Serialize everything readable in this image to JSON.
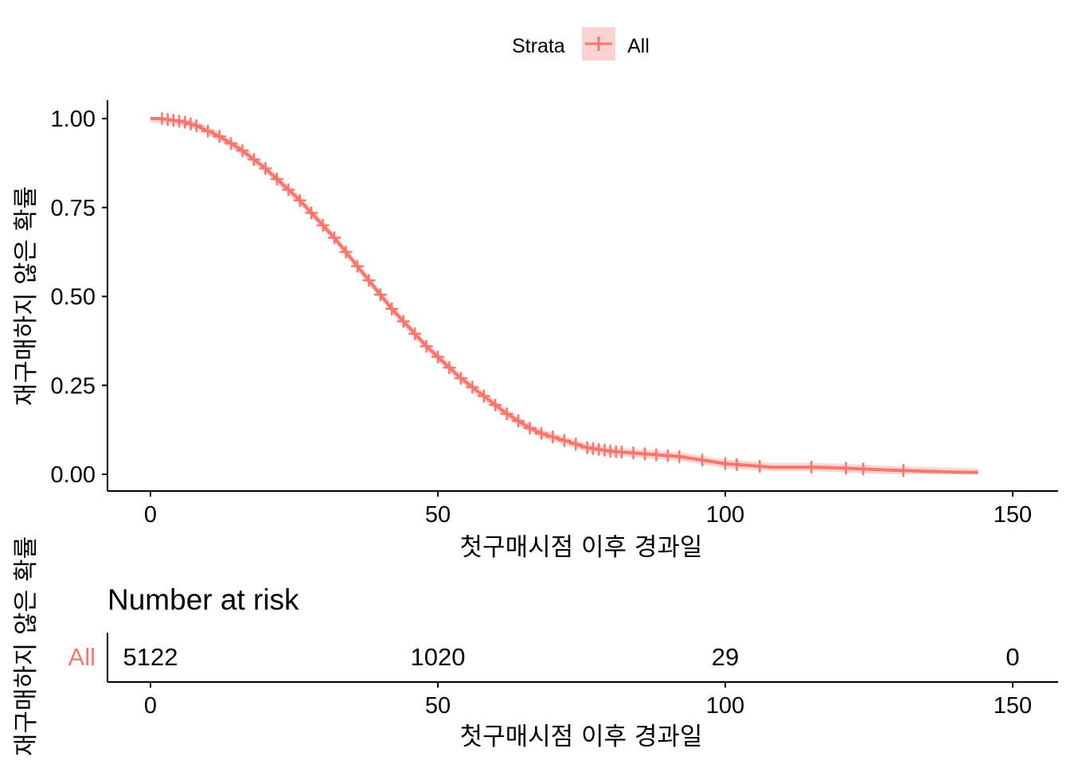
{
  "legend": {
    "title": "Strata",
    "label": "All"
  },
  "colors": {
    "series": "#F8766D",
    "band": "#F8766D"
  },
  "chart_data": [
    {
      "type": "line",
      "title": "",
      "xlabel": "첫구매시점 이후 경과일",
      "ylabel": "재구매하지 않은 확률",
      "xlim": [
        0,
        150
      ],
      "ylim": [
        0,
        1
      ],
      "x_ticks": [
        "0",
        "50",
        "100",
        "150"
      ],
      "y_ticks": [
        "0.00",
        "0.25",
        "0.50",
        "0.75",
        "1.00"
      ],
      "legend_position": "top",
      "grid": false,
      "series": [
        {
          "name": "All",
          "x": [
            0,
            2,
            4,
            6,
            8,
            10,
            12,
            14,
            16,
            18,
            20,
            22,
            24,
            26,
            28,
            30,
            32,
            34,
            36,
            38,
            40,
            42,
            44,
            46,
            48,
            50,
            52,
            54,
            56,
            58,
            60,
            62,
            64,
            66,
            68,
            70,
            72,
            74,
            76,
            78,
            80,
            84,
            88,
            92,
            96,
            100,
            104,
            108,
            112,
            116,
            120,
            124,
            128,
            132,
            136,
            140,
            144
          ],
          "y": [
            1.0,
            1.0,
            0.995,
            0.99,
            0.98,
            0.965,
            0.95,
            0.93,
            0.91,
            0.885,
            0.86,
            0.83,
            0.8,
            0.77,
            0.735,
            0.7,
            0.665,
            0.625,
            0.585,
            0.545,
            0.505,
            0.465,
            0.43,
            0.395,
            0.36,
            0.33,
            0.3,
            0.27,
            0.245,
            0.22,
            0.195,
            0.17,
            0.15,
            0.13,
            0.115,
            0.105,
            0.095,
            0.085,
            0.075,
            0.07,
            0.065,
            0.06,
            0.055,
            0.05,
            0.04,
            0.03,
            0.025,
            0.02,
            0.02,
            0.02,
            0.018,
            0.015,
            0.012,
            0.01,
            0.008,
            0.006,
            0.005
          ]
        }
      ],
      "censor_x": [
        2,
        3,
        4,
        5,
        6,
        7,
        8,
        10,
        12,
        14,
        16,
        18,
        20,
        22,
        24,
        26,
        28,
        30,
        32,
        34,
        36,
        38,
        40,
        42,
        44,
        46,
        48,
        50,
        52,
        54,
        56,
        58,
        60,
        62,
        64,
        66,
        68,
        70,
        72,
        74,
        76,
        77,
        78,
        79,
        80,
        81,
        82,
        84,
        86,
        88,
        90,
        92,
        96,
        100,
        102,
        106,
        115,
        121,
        124,
        131
      ]
    }
  ],
  "risk_table": {
    "title": "Number at risk",
    "strata_label": "All",
    "xlabel": "첫구매시점 이후 경과일",
    "ylabel": "재구매하지 않은 확률",
    "x_ticks": [
      "0",
      "50",
      "100",
      "150"
    ],
    "values": [
      "5122",
      "1020",
      "29",
      "0"
    ]
  }
}
